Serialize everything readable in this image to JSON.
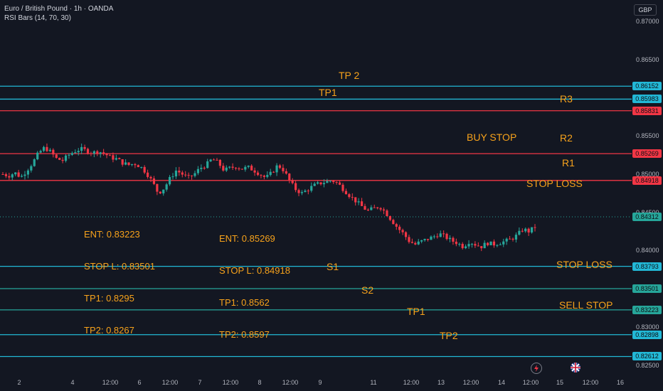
{
  "legend": {
    "symbol": "Euro / British Pound · 1h · OANDA",
    "indicator": "RSI Bars (14, 70, 30)"
  },
  "currency": "GBP",
  "price_ticks": [
    "0.87000",
    "0.86500",
    "0.85500",
    "0.85000",
    "0.84500",
    "0.84000",
    "0.83000",
    "0.82500"
  ],
  "levels": [
    {
      "price": 0.86152,
      "tag": "0.86152",
      "color": "#22b8d6"
    },
    {
      "price": 0.85983,
      "tag": "0.85983",
      "color": "#22b8d6"
    },
    {
      "price": 0.85831,
      "tag": "0.85831",
      "color": "#f23645"
    },
    {
      "price": 0.85269,
      "tag": "0.85269",
      "color": "#f23645"
    },
    {
      "price": 0.84918,
      "tag": "0.84918",
      "color": "#f23645"
    },
    {
      "price": 0.83793,
      "tag": "0.83793",
      "color": "#22b8d6"
    },
    {
      "price": 0.83501,
      "tag": "0.83501",
      "color": "#26a69a"
    },
    {
      "price": 0.83223,
      "tag": "0.83223",
      "color": "#26a69a"
    },
    {
      "price": 0.82898,
      "tag": "0.82898",
      "color": "#22b8d6"
    },
    {
      "price": 0.82612,
      "tag": "0.82612",
      "color": "#22b8d6"
    }
  ],
  "current_price": {
    "tag": "0.84312",
    "color": "#26a69a"
  },
  "labels": {
    "tp2_top": "TP 2",
    "tp1_top": "TP1",
    "r3": "R3",
    "buy_stop": "BUY STOP",
    "r2": "R2",
    "r1": "R1",
    "stop_loss_top": "STOP LOSS",
    "s1": "S1",
    "stop_loss_bottom": "STOP LOSS",
    "s2": "S2",
    "sell_stop": "SELL STOP",
    "tp1_bottom": "TP1",
    "tp2_bottom": "TP2"
  },
  "notes": {
    "sell": [
      "ENT: 0.83223",
      "STOP L: 0.83501",
      "TP1:  0.8295",
      "TP2: 0.8267"
    ],
    "buy": [
      "ENT: 0.85269",
      "STOP L: 0.84918",
      "TP1: 0.8562",
      "TP2: 0.8597"
    ]
  },
  "time_ticks": [
    "2",
    "4",
    "12:00",
    "6",
    "12:00",
    "7",
    "12:00",
    "8",
    "12:00",
    "9",
    "11",
    "12:00",
    "13",
    "12:00",
    "14",
    "12:00",
    "15",
    "12:00",
    "16"
  ],
  "colors": {
    "up": "#26a69a",
    "down": "#f23645",
    "background": "#131722"
  },
  "icons": [
    "lightning-icon",
    "uk-flag-icon"
  ],
  "chart_data": {
    "type": "candlestick",
    "price_range": [
      0.823,
      0.872
    ],
    "close_path": [
      0.85,
      0.8498,
      0.8502,
      0.8496,
      0.8505,
      0.8515,
      0.8528,
      0.8535,
      0.8529,
      0.852,
      0.8518,
      0.8525,
      0.853,
      0.8533,
      0.8531,
      0.8528,
      0.853,
      0.8527,
      0.8522,
      0.852,
      0.8515,
      0.8512,
      0.8514,
      0.851,
      0.8502,
      0.849,
      0.8475,
      0.8482,
      0.8495,
      0.8505,
      0.85,
      0.8495,
      0.85,
      0.8508,
      0.8512,
      0.852,
      0.8515,
      0.8505,
      0.8508,
      0.851,
      0.8507,
      0.8509,
      0.8505,
      0.85,
      0.8495,
      0.8502,
      0.8512,
      0.8505,
      0.849,
      0.848,
      0.8475,
      0.848,
      0.8485,
      0.8488,
      0.849,
      0.8492,
      0.8488,
      0.848,
      0.8472,
      0.8465,
      0.8458,
      0.8452,
      0.8455,
      0.8458,
      0.845,
      0.844,
      0.843,
      0.8422,
      0.8412,
      0.8408,
      0.8412,
      0.8415,
      0.8418,
      0.8422,
      0.8418,
      0.8413,
      0.841,
      0.8405,
      0.8412,
      0.8408,
      0.8405,
      0.841,
      0.8408,
      0.841,
      0.8412,
      0.8415,
      0.842,
      0.8428,
      0.8425,
      0.8431
    ]
  }
}
